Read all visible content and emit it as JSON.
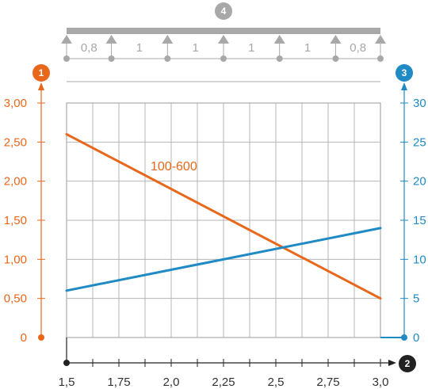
{
  "chart_data": {
    "type": "line",
    "x": [
      1.5,
      3.0
    ],
    "xticks": [
      "1,5",
      "1,75",
      "2,0",
      "2,25",
      "2,5",
      "2,75",
      "3,0"
    ],
    "xlim": [
      1.5,
      3.0
    ],
    "y_left": {
      "ticks": [
        "0",
        "0,50",
        "1,00",
        "1,50",
        "2,00",
        "2,50",
        "3,00"
      ],
      "ylim": [
        0,
        3.0
      ],
      "color": "#e8671b"
    },
    "y_right": {
      "ticks": [
        "0",
        "5",
        "10",
        "15",
        "20",
        "25",
        "30"
      ],
      "ylim": [
        0,
        30
      ],
      "color": "#1f8ac4"
    },
    "series": [
      {
        "name": "100-600",
        "axis": "left",
        "color": "#e8671b",
        "x": [
          1.5,
          3.0
        ],
        "values": [
          2.6,
          0.5
        ]
      },
      {
        "axis": "right",
        "color": "#1f8ac4",
        "x": [
          1.5,
          3.0
        ],
        "values": [
          6,
          14
        ]
      }
    ],
    "grid": true,
    "badges": {
      "left_axis": "1",
      "x_axis": "2",
      "right_axis": "3",
      "span_diagram": "4"
    },
    "span_diagram": {
      "span_labels": [
        "0,8",
        "1",
        "1",
        "1",
        "1",
        "0,8"
      ],
      "supports": 7,
      "color": "#a8a8a8"
    }
  }
}
